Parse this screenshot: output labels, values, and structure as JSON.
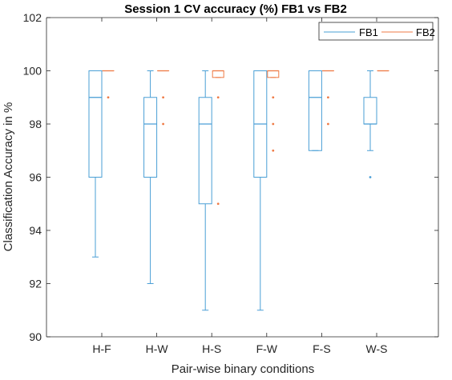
{
  "colors": {
    "fb1": "#4a9fd6",
    "fb2": "#ef7a45",
    "axis": "#262626",
    "background": "#ffffff"
  },
  "chart_data": {
    "type": "boxplot",
    "title": "Session 1 CV accuracy (%) FB1 vs FB2",
    "xlabel": "Pair-wise binary conditions",
    "ylabel": "Classification Accuracy in %",
    "ylim": [
      90,
      102
    ],
    "yticks": [
      90,
      92,
      94,
      96,
      98,
      100,
      102
    ],
    "categories": [
      "H-F",
      "H-W",
      "H-S",
      "F-W",
      "F-S",
      "W-S"
    ],
    "grid": false,
    "legend_position": "top-right",
    "series": [
      {
        "name": "FB1",
        "color_key": "fb1",
        "boxes": [
          {
            "min": 93,
            "q1": 96,
            "median": 99,
            "q3": 100,
            "max": 100,
            "outliers": []
          },
          {
            "min": 92,
            "q1": 96,
            "median": 98,
            "q3": 99,
            "max": 100,
            "outliers": []
          },
          {
            "min": 91,
            "q1": 95,
            "median": 98,
            "q3": 99,
            "max": 100,
            "outliers": []
          },
          {
            "min": 91,
            "q1": 96,
            "median": 98,
            "q3": 100,
            "max": 100,
            "outliers": []
          },
          {
            "min": 97,
            "q1": 97,
            "median": 99,
            "q3": 100,
            "max": 100,
            "outliers": []
          },
          {
            "min": 97,
            "q1": 98,
            "median": 98,
            "q3": 99,
            "max": 100,
            "outliers": [
              96
            ]
          }
        ]
      },
      {
        "name": "FB2",
        "color_key": "fb2",
        "boxes": [
          {
            "min": 100,
            "q1": 100,
            "median": 100,
            "q3": 100,
            "max": 100,
            "outliers": [
              99
            ]
          },
          {
            "min": 100,
            "q1": 100,
            "median": 100,
            "q3": 100,
            "max": 100,
            "outliers": [
              99,
              98
            ]
          },
          {
            "min": 99.75,
            "q1": 99.75,
            "median": 100,
            "q3": 100,
            "max": 100,
            "outliers": [
              99,
              95
            ]
          },
          {
            "min": 99.75,
            "q1": 99.75,
            "median": 100,
            "q3": 100,
            "max": 100,
            "outliers": [
              99,
              98,
              97
            ]
          },
          {
            "min": 100,
            "q1": 100,
            "median": 100,
            "q3": 100,
            "max": 100,
            "outliers": [
              99,
              98
            ]
          },
          {
            "min": 100,
            "q1": 100,
            "median": 100,
            "q3": 100,
            "max": 100,
            "outliers": []
          }
        ]
      }
    ]
  }
}
